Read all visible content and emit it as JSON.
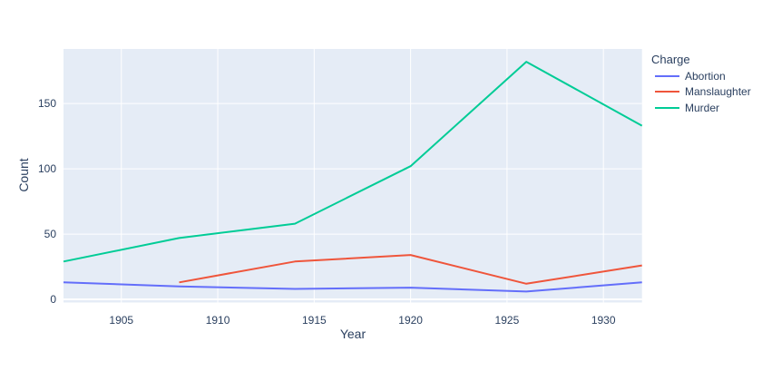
{
  "figure": {
    "background": "#ffffff",
    "plot_bg": "#E5ECF6",
    "grid_color": "#ffffff",
    "text_color": "#2a3f5f"
  },
  "chart_data": {
    "type": "line",
    "title": "",
    "xlabel": "Year",
    "ylabel": "Count",
    "x_range": [
      1902,
      1932
    ],
    "y_range": [
      -2.4,
      191.8
    ],
    "x_ticks": [
      1905,
      1910,
      1915,
      1920,
      1925,
      1930
    ],
    "y_ticks": [
      0,
      50,
      100,
      150
    ],
    "grid": true,
    "legend_title": "Charge",
    "legend_position": "right",
    "series": [
      {
        "name": "Abortion",
        "color": "#636EFA",
        "x": [
          1902,
          1908,
          1914,
          1920,
          1926,
          1932
        ],
        "y": [
          13,
          10,
          8,
          9,
          6,
          13
        ]
      },
      {
        "name": "Manslaughter",
        "color": "#EF553B",
        "x": [
          1908,
          1914,
          1920,
          1926,
          1932
        ],
        "y": [
          13,
          29,
          34,
          12,
          26
        ]
      },
      {
        "name": "Murder",
        "color": "#00CC96",
        "x": [
          1902,
          1908,
          1914,
          1920,
          1926,
          1932
        ],
        "y": [
          29,
          47,
          58,
          102,
          182,
          133
        ]
      }
    ]
  }
}
